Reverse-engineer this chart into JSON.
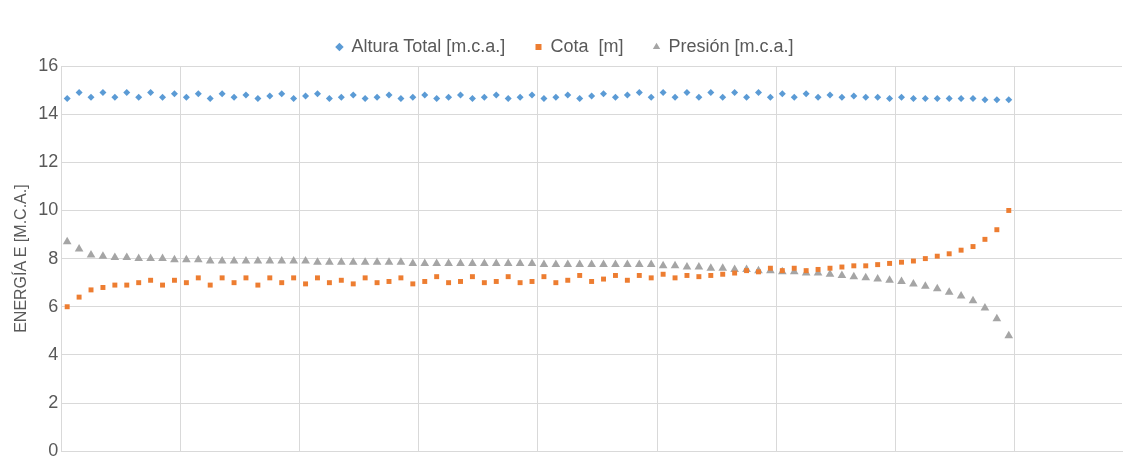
{
  "chart_data": {
    "type": "scatter",
    "ylabel": "ENERGÍA E [M.C.A.]",
    "categories": [
      null,
      null,
      null,
      null,
      null,
      null,
      null,
      null,
      null,
      null,
      null,
      null,
      null,
      null,
      null,
      null,
      null,
      null,
      null,
      null,
      null,
      null,
      null,
      null,
      null,
      null,
      null,
      null,
      null,
      null,
      null,
      null,
      null,
      null,
      null,
      null,
      null,
      null,
      null,
      null,
      null,
      null,
      null,
      null,
      null,
      null,
      null,
      null,
      null,
      null,
      null,
      null,
      null,
      null,
      null,
      null,
      null,
      null,
      null,
      null,
      null,
      null,
      null,
      null,
      null,
      null,
      null,
      null,
      null,
      null,
      null,
      null,
      null,
      null,
      null,
      null,
      null,
      null,
      null,
      null,
      null,
      null,
      null,
      null,
      null,
      null,
      null,
      null,
      null
    ],
    "series": [
      {
        "name": "Altura Total [m.c.a.]",
        "color": "#5b9bd5",
        "marker": "diamond",
        "values": [
          14.65,
          14.9,
          14.7,
          14.9,
          14.7,
          14.9,
          14.7,
          14.9,
          14.7,
          14.85,
          14.7,
          14.85,
          14.65,
          14.85,
          14.7,
          14.8,
          14.65,
          14.75,
          14.85,
          14.65,
          14.75,
          14.85,
          14.65,
          14.7,
          14.8,
          14.65,
          14.7,
          14.8,
          14.65,
          14.7,
          14.8,
          14.65,
          14.7,
          14.8,
          14.65,
          14.7,
          14.8,
          14.65,
          14.7,
          14.8,
          14.65,
          14.7,
          14.8,
          14.65,
          14.75,
          14.85,
          14.7,
          14.8,
          14.9,
          14.7,
          14.9,
          14.7,
          14.9,
          14.7,
          14.9,
          14.7,
          14.9,
          14.7,
          14.9,
          14.7,
          14.85,
          14.7,
          14.85,
          14.7,
          14.8,
          14.7,
          14.75,
          14.7,
          14.7,
          14.65,
          14.7,
          14.65,
          14.65,
          14.65,
          14.65,
          14.65,
          14.65,
          14.6,
          14.6,
          14.6,
          null,
          null,
          null,
          null,
          null,
          null,
          null,
          null,
          null
        ]
      },
      {
        "name": "Cota  [m]",
        "color": "#ed7d31",
        "marker": "square",
        "values": [
          6.0,
          6.4,
          6.7,
          6.8,
          6.9,
          6.9,
          7.0,
          7.1,
          6.9,
          7.1,
          7.0,
          7.2,
          6.9,
          7.2,
          7.0,
          7.2,
          6.9,
          7.2,
          7.0,
          7.2,
          6.95,
          7.2,
          7.0,
          7.1,
          6.95,
          7.2,
          7.0,
          7.05,
          7.2,
          6.95,
          7.05,
          7.25,
          7.0,
          7.05,
          7.25,
          7.0,
          7.05,
          7.25,
          7.0,
          7.05,
          7.25,
          7.0,
          7.1,
          7.3,
          7.05,
          7.15,
          7.3,
          7.1,
          7.3,
          7.2,
          7.35,
          7.2,
          7.3,
          7.25,
          7.3,
          7.35,
          7.4,
          7.5,
          7.45,
          7.6,
          7.5,
          7.6,
          7.5,
          7.55,
          7.6,
          7.65,
          7.7,
          7.7,
          7.75,
          7.8,
          7.85,
          7.9,
          8.0,
          8.1,
          8.2,
          8.35,
          8.5,
          8.8,
          9.2,
          10.0,
          null,
          null,
          null,
          null,
          null,
          null,
          null,
          null,
          null
        ]
      },
      {
        "name": "Presión [m.c.a.]",
        "color": "#a5a5a5",
        "marker": "triangle",
        "values": [
          8.7,
          8.4,
          8.15,
          8.1,
          8.05,
          8.05,
          8.0,
          8.0,
          8.0,
          7.95,
          7.95,
          7.95,
          7.9,
          7.9,
          7.9,
          7.9,
          7.9,
          7.9,
          7.9,
          7.9,
          7.9,
          7.85,
          7.85,
          7.85,
          7.85,
          7.85,
          7.85,
          7.85,
          7.85,
          7.8,
          7.8,
          7.8,
          7.8,
          7.8,
          7.8,
          7.8,
          7.8,
          7.8,
          7.8,
          7.8,
          7.75,
          7.75,
          7.75,
          7.75,
          7.75,
          7.75,
          7.75,
          7.75,
          7.75,
          7.75,
          7.7,
          7.7,
          7.65,
          7.65,
          7.6,
          7.6,
          7.55,
          7.55,
          7.5,
          7.5,
          7.45,
          7.45,
          7.4,
          7.4,
          7.35,
          7.3,
          7.25,
          7.2,
          7.15,
          7.1,
          7.05,
          6.95,
          6.85,
          6.75,
          6.6,
          6.45,
          6.25,
          5.95,
          5.5,
          4.8,
          null,
          null,
          null,
          null,
          null,
          null,
          null,
          null,
          null
        ]
      }
    ],
    "ylim": [
      0,
      16
    ],
    "yticks": [
      0,
      2,
      4,
      6,
      8,
      10,
      12,
      14,
      16
    ],
    "grid": true,
    "legend": "top",
    "tick_labels": "y"
  }
}
